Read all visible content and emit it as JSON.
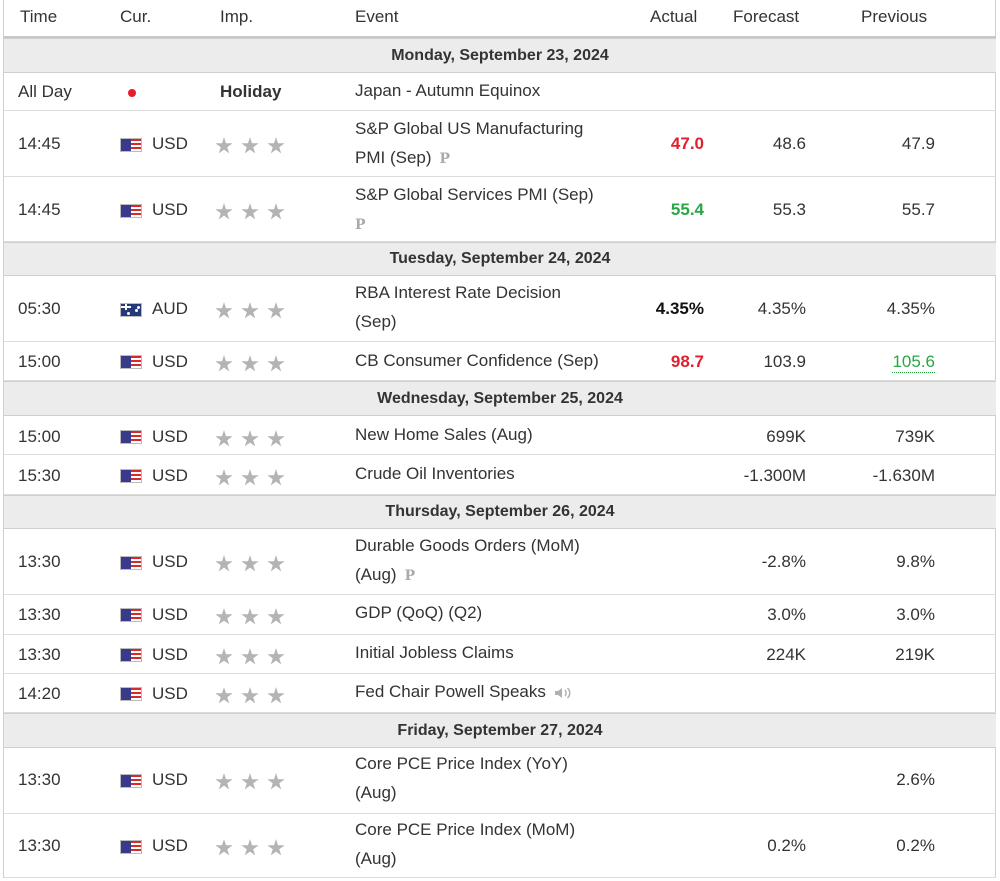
{
  "header": {
    "time": "Time",
    "currency": "Cur.",
    "importance": "Imp.",
    "event": "Event",
    "actual": "Actual",
    "forecast": "Forecast",
    "previous": "Previous"
  },
  "colors": {
    "actual_worse": "#e0202c",
    "actual_better": "#28a745",
    "day_row_background": "#ececec",
    "star_gray": "#b4b4b4"
  },
  "days": [
    {
      "label": "Monday, September 23, 2024",
      "events": [
        {
          "time": "All Day",
          "flag": "japan-flag",
          "currency": "",
          "importance": "Holiday",
          "event": "Japan - Autumn Equinox",
          "actual": "",
          "forecast": "",
          "previous": ""
        },
        {
          "time": "14:45",
          "flag": "us-flag",
          "currency": "USD",
          "importance_stars": 3,
          "event_line1": "S&P Global US Manufacturing",
          "event_line2": "PMI (Sep)",
          "preliminary": "P",
          "actual": "47.0",
          "actual_status": "worse",
          "forecast": "48.6",
          "previous": "47.9"
        },
        {
          "time": "14:45",
          "flag": "us-flag",
          "currency": "USD",
          "importance_stars": 3,
          "event_line1": "S&P Global Services PMI (Sep)",
          "event_line2": "",
          "preliminary": "P",
          "actual": "55.4",
          "actual_status": "better",
          "forecast": "55.3",
          "previous": "55.7"
        }
      ]
    },
    {
      "label": "Tuesday, September 24, 2024",
      "events": [
        {
          "time": "05:30",
          "flag": "australia-flag",
          "currency": "AUD",
          "importance_stars": 3,
          "event_line1": "RBA Interest Rate Decision",
          "event_line2": "(Sep)",
          "actual": "4.35%",
          "actual_status": "neutral",
          "forecast": "4.35%",
          "previous": "4.35%"
        },
        {
          "time": "15:00",
          "flag": "us-flag",
          "currency": "USD",
          "importance_stars": 3,
          "event_line1": "CB Consumer Confidence (Sep)",
          "actual": "98.7",
          "actual_status": "worse",
          "forecast": "103.9",
          "previous": "105.6",
          "previous_status": "revised-up"
        }
      ]
    },
    {
      "label": "Wednesday, September 25, 2024",
      "events": [
        {
          "time": "15:00",
          "flag": "us-flag",
          "currency": "USD",
          "importance_stars": 3,
          "event_line1": "New Home Sales (Aug)",
          "actual": "",
          "forecast": "699K",
          "previous": "739K"
        },
        {
          "time": "15:30",
          "flag": "us-flag",
          "currency": "USD",
          "importance_stars": 3,
          "event_line1": "Crude Oil Inventories",
          "actual": "",
          "forecast": "-1.300M",
          "previous": "-1.630M"
        }
      ]
    },
    {
      "label": "Thursday, September 26, 2024",
      "events": [
        {
          "time": "13:30",
          "flag": "us-flag",
          "currency": "USD",
          "importance_stars": 3,
          "event_line1": "Durable Goods Orders (MoM)",
          "event_line2": "(Aug)",
          "preliminary": "P",
          "actual": "",
          "forecast": "-2.8%",
          "previous": "9.8%"
        },
        {
          "time": "13:30",
          "flag": "us-flag",
          "currency": "USD",
          "importance_stars": 3,
          "event_line1": "GDP (QoQ) (Q2)",
          "actual": "",
          "forecast": "3.0%",
          "previous": "3.0%"
        },
        {
          "time": "13:30",
          "flag": "us-flag",
          "currency": "USD",
          "importance_stars": 3,
          "event_line1": "Initial Jobless Claims",
          "actual": "",
          "forecast": "224K",
          "previous": "219K"
        },
        {
          "time": "14:20",
          "flag": "us-flag",
          "currency": "USD",
          "importance_stars": 3,
          "event_line1": "Fed Chair Powell Speaks",
          "speech_icon": "speaker-icon",
          "actual": "",
          "forecast": "",
          "previous": ""
        }
      ]
    },
    {
      "label": "Friday, September 27, 2024",
      "events": [
        {
          "time": "13:30",
          "flag": "us-flag",
          "currency": "USD",
          "importance_stars": 3,
          "event_line1": "Core PCE Price Index (YoY)",
          "event_line2": "(Aug)",
          "actual": "",
          "forecast": "",
          "previous": "2.6%"
        },
        {
          "time": "13:30",
          "flag": "us-flag",
          "currency": "USD",
          "importance_stars": 3,
          "event_line1": "Core PCE Price Index (MoM)",
          "event_line2": "(Aug)",
          "actual": "",
          "forecast": "0.2%",
          "previous": "0.2%"
        }
      ]
    }
  ]
}
